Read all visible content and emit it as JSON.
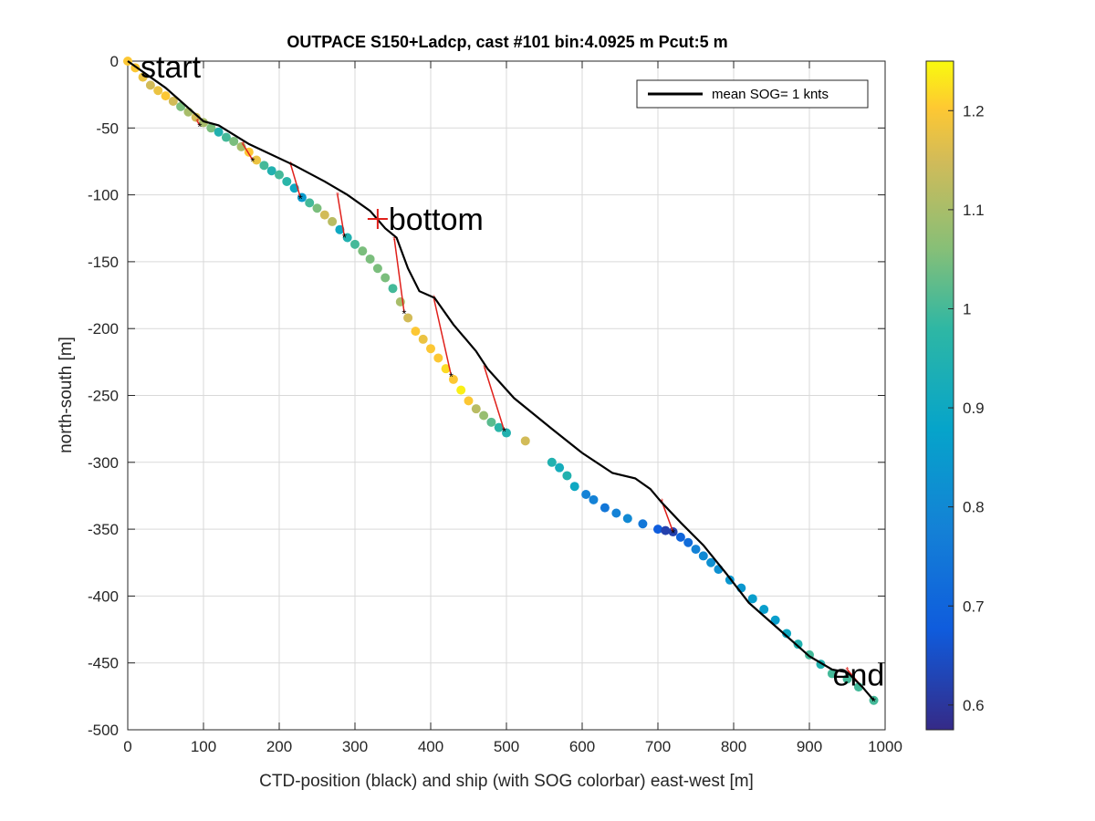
{
  "chart_data": {
    "type": "scatter",
    "title": "OUTPACE S150+Ladcp, cast #101 bin:4.0925 m  Pcut:5 m",
    "xlabel": "CTD-position (black) and ship (with SOG colorbar) east-west [m]",
    "ylabel": "north-south [m]",
    "xlim": [
      0,
      1000
    ],
    "ylim": [
      -500,
      0
    ],
    "xticks": [
      "0",
      "100",
      "200",
      "300",
      "400",
      "500",
      "600",
      "700",
      "800",
      "900",
      "1000"
    ],
    "yticks": [
      "0",
      "-50",
      "-100",
      "-150",
      "-200",
      "-250",
      "-300",
      "-350",
      "-400",
      "-450",
      "-500"
    ],
    "grid": true,
    "legend": {
      "location": "top-right",
      "entries": [
        "mean SOG=  1 knts"
      ]
    },
    "annotations": [
      {
        "text": "start",
        "x": 0,
        "y": 0
      },
      {
        "text": "bottom",
        "x": 330,
        "y": -118
      },
      {
        "text": "end",
        "x": 985,
        "y": -478
      }
    ],
    "colorbar": {
      "range": [
        0.575,
        1.25
      ],
      "ticks": [
        "0.6",
        "0.7",
        "0.8",
        "0.9",
        "1",
        "1.1",
        "1.2"
      ],
      "colormap": "parula"
    },
    "series": [
      {
        "name": "mean SOG=  1 knts",
        "kind": "line",
        "color": "#000000",
        "points": [
          [
            0,
            0
          ],
          [
            50,
            -20
          ],
          [
            100,
            -45
          ],
          [
            120,
            -48
          ],
          [
            160,
            -62
          ],
          [
            220,
            -78
          ],
          [
            260,
            -90
          ],
          [
            290,
            -100
          ],
          [
            320,
            -112
          ],
          [
            340,
            -125
          ],
          [
            355,
            -132
          ],
          [
            370,
            -155
          ],
          [
            385,
            -172
          ],
          [
            405,
            -177
          ],
          [
            430,
            -197
          ],
          [
            460,
            -217
          ],
          [
            475,
            -230
          ],
          [
            510,
            -252
          ],
          [
            560,
            -275
          ],
          [
            600,
            -293
          ],
          [
            640,
            -308
          ],
          [
            670,
            -312
          ],
          [
            690,
            -320
          ],
          [
            705,
            -330
          ],
          [
            730,
            -345
          ],
          [
            760,
            -362
          ],
          [
            790,
            -383
          ],
          [
            820,
            -405
          ],
          [
            860,
            -425
          ],
          [
            900,
            -445
          ],
          [
            930,
            -455
          ],
          [
            950,
            -457
          ],
          [
            970,
            -468
          ],
          [
            985,
            -478
          ]
        ]
      },
      {
        "name": "",
        "kind": "scatter",
        "colored_by": "SOG",
        "points": [
          [
            0,
            0,
            1.2
          ],
          [
            10,
            -5,
            1.2
          ],
          [
            20,
            -12,
            1.18
          ],
          [
            30,
            -18,
            1.15
          ],
          [
            40,
            -22,
            1.18
          ],
          [
            50,
            -26,
            1.2
          ],
          [
            60,
            -30,
            1.15
          ],
          [
            70,
            -34,
            1.05
          ],
          [
            80,
            -38,
            1.1
          ],
          [
            90,
            -42,
            1.15
          ],
          [
            100,
            -46,
            1.1
          ],
          [
            110,
            -50,
            1.05
          ],
          [
            120,
            -53,
            0.95
          ],
          [
            130,
            -57,
            1.0
          ],
          [
            140,
            -60,
            1.05
          ],
          [
            150,
            -64,
            1.1
          ],
          [
            160,
            -68,
            1.2
          ],
          [
            170,
            -74,
            1.18
          ],
          [
            180,
            -78,
            1.0
          ],
          [
            190,
            -82,
            0.95
          ],
          [
            200,
            -85,
            1.0
          ],
          [
            210,
            -90,
            0.97
          ],
          [
            220,
            -95,
            0.9
          ],
          [
            230,
            -102,
            0.85
          ],
          [
            240,
            -106,
            1.0
          ],
          [
            250,
            -110,
            1.05
          ],
          [
            260,
            -115,
            1.15
          ],
          [
            270,
            -120,
            1.12
          ],
          [
            280,
            -126,
            0.9
          ],
          [
            290,
            -132,
            0.95
          ],
          [
            300,
            -137,
            1.0
          ],
          [
            310,
            -142,
            1.05
          ],
          [
            320,
            -148,
            1.05
          ],
          [
            330,
            -155,
            1.05
          ],
          [
            340,
            -162,
            1.05
          ],
          [
            350,
            -170,
            1.0
          ],
          [
            360,
            -180,
            1.1
          ],
          [
            370,
            -192,
            1.15
          ],
          [
            380,
            -202,
            1.2
          ],
          [
            390,
            -208,
            1.18
          ],
          [
            400,
            -215,
            1.2
          ],
          [
            410,
            -222,
            1.2
          ],
          [
            420,
            -230,
            1.22
          ],
          [
            430,
            -238,
            1.2
          ],
          [
            440,
            -246,
            1.24
          ],
          [
            450,
            -254,
            1.2
          ],
          [
            460,
            -260,
            1.12
          ],
          [
            470,
            -265,
            1.08
          ],
          [
            480,
            -270,
            1.02
          ],
          [
            490,
            -274,
            0.97
          ],
          [
            500,
            -278,
            0.95
          ],
          [
            525,
            -284,
            1.15
          ],
          [
            560,
            -300,
            0.95
          ],
          [
            570,
            -304,
            0.92
          ],
          [
            580,
            -310,
            0.95
          ],
          [
            590,
            -318,
            0.9
          ],
          [
            605,
            -324,
            0.78
          ],
          [
            615,
            -328,
            0.78
          ],
          [
            630,
            -334,
            0.75
          ],
          [
            645,
            -338,
            0.78
          ],
          [
            660,
            -342,
            0.8
          ],
          [
            680,
            -346,
            0.75
          ],
          [
            700,
            -350,
            0.68
          ],
          [
            710,
            -351,
            0.62
          ],
          [
            720,
            -352,
            0.62
          ],
          [
            730,
            -356,
            0.7
          ],
          [
            740,
            -360,
            0.72
          ],
          [
            750,
            -365,
            0.78
          ],
          [
            760,
            -370,
            0.8
          ],
          [
            770,
            -375,
            0.82
          ],
          [
            780,
            -380,
            0.82
          ],
          [
            795,
            -388,
            0.84
          ],
          [
            810,
            -394,
            0.84
          ],
          [
            825,
            -402,
            0.86
          ],
          [
            840,
            -410,
            0.86
          ],
          [
            855,
            -418,
            0.86
          ],
          [
            870,
            -428,
            0.9
          ],
          [
            885,
            -436,
            0.95
          ],
          [
            900,
            -444,
            1.0
          ],
          [
            915,
            -451,
            0.95
          ],
          [
            930,
            -458,
            1.0
          ],
          [
            950,
            -462,
            1.0
          ],
          [
            965,
            -468,
            1.0
          ],
          [
            985,
            -478,
            1.0
          ]
        ]
      }
    ],
    "connectors": [
      [
        [
          92,
          -45
        ],
        [
          95,
          -48
        ]
      ],
      [
        [
          152,
          -62
        ],
        [
          165,
          -74
        ]
      ],
      [
        [
          215,
          -77
        ],
        [
          228,
          -102
        ]
      ],
      [
        [
          277,
          -100
        ],
        [
          286,
          -131
        ]
      ],
      [
        [
          352,
          -133
        ],
        [
          365,
          -188
        ]
      ],
      [
        [
          404,
          -177
        ],
        [
          427,
          -235
        ]
      ],
      [
        [
          471,
          -229
        ],
        [
          497,
          -276
        ]
      ],
      [
        [
          705,
          -329
        ],
        [
          720,
          -352
        ]
      ],
      [
        [
          950,
          -455
        ],
        [
          985,
          -478
        ]
      ]
    ]
  }
}
